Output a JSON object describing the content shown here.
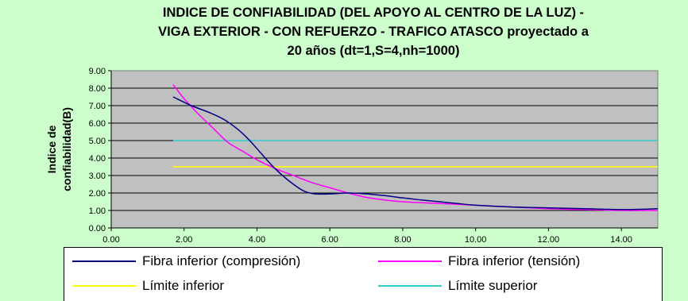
{
  "chart_data": {
    "type": "line",
    "title_lines": [
      "INDICE DE CONFIABILIDAD (DEL APOYO AL CENTRO DE LA LUZ) -",
      "VIGA EXTERIOR - CON REFUERZO - TRAFICO ATASCO proyectado a",
      "20 años (dt=1,S=4,nh=1000)"
    ],
    "ylabel_lines": [
      "Indice de",
      "confiabilidad(B)"
    ],
    "xlim": [
      0,
      15
    ],
    "ylim": [
      0,
      9
    ],
    "xticks": [
      "0.00",
      "2.00",
      "4.00",
      "6.00",
      "8.00",
      "10.00",
      "12.00",
      "14.00"
    ],
    "yticks": [
      "0.00",
      "1.00",
      "2.00",
      "3.00",
      "4.00",
      "5.00",
      "6.00",
      "7.00",
      "8.00",
      "9.00"
    ],
    "grid": "horizontal",
    "legend_position": "bottom",
    "series": [
      {
        "name": "Fibra inferior (compresión)",
        "color": "#000080",
        "x": [
          1.7,
          2.2,
          2.7,
          3.1,
          3.5,
          3.8,
          4.1,
          4.4,
          4.7,
          5.0,
          5.3,
          5.6,
          6.0,
          6.5,
          7.0,
          7.5,
          8.0,
          8.5,
          9.0,
          9.5,
          10.0,
          11.0,
          12.0,
          13.0,
          14.0,
          15.0
        ],
        "y": [
          7.5,
          7.0,
          6.6,
          6.2,
          5.6,
          5.0,
          4.3,
          3.6,
          3.0,
          2.5,
          2.1,
          1.95,
          1.95,
          2.0,
          1.95,
          1.85,
          1.72,
          1.6,
          1.5,
          1.4,
          1.3,
          1.2,
          1.15,
          1.1,
          1.05,
          1.1
        ]
      },
      {
        "name": "Fibra inferior (tensión)",
        "color": "#ff00ff",
        "x": [
          1.7,
          2.0,
          2.4,
          2.8,
          3.2,
          3.6,
          4.0,
          4.5,
          5.0,
          5.5,
          6.0,
          6.5,
          7.0,
          7.5,
          8.0,
          9.0,
          10.0,
          11.0,
          12.0,
          13.0,
          14.0,
          15.0
        ],
        "y": [
          8.2,
          7.4,
          6.5,
          5.7,
          4.9,
          4.4,
          3.9,
          3.4,
          3.0,
          2.6,
          2.3,
          2.0,
          1.75,
          1.6,
          1.5,
          1.4,
          1.3,
          1.2,
          1.1,
          1.05,
          1.0,
          1.0
        ]
      },
      {
        "name": "Límite inferior",
        "color": "#ffff00",
        "x": [
          1.7,
          15.0
        ],
        "y": [
          3.5,
          3.5
        ]
      },
      {
        "name": "Límite superior",
        "color": "#33cccc",
        "x": [
          1.7,
          15.0
        ],
        "y": [
          5.0,
          5.0
        ]
      }
    ]
  }
}
